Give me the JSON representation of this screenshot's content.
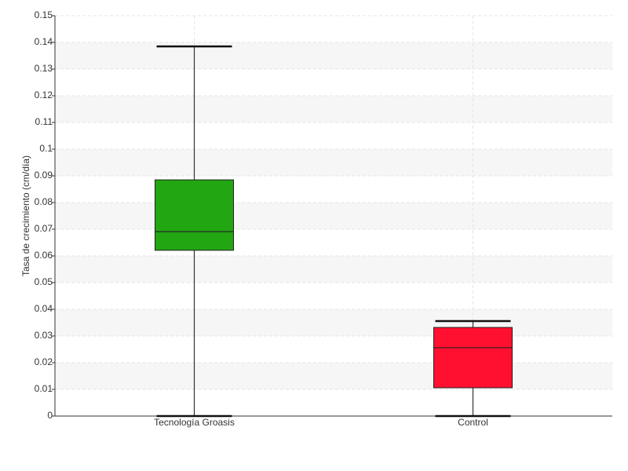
{
  "chart_data": {
    "type": "box",
    "y_label": "Tasa de crecimiento (cm/día)",
    "categories": [
      "Tecnología Groasis",
      "Control"
    ],
    "values": [
      {
        "min": 0,
        "q1": 0.0621,
        "median": 0.0691,
        "q3": 0.0885,
        "max": 0.1385
      },
      {
        "min": 0,
        "q1": 0.0106,
        "median": 0.0256,
        "q3": 0.0332,
        "max": 0.0356
      }
    ],
    "colors": [
      "#22a612",
      "#ff1030"
    ],
    "ylim": [
      0,
      0.15
    ],
    "yticks": [
      0,
      0.01,
      0.02,
      0.03,
      0.04,
      0.05,
      0.06,
      0.07,
      0.08,
      0.09,
      0.1,
      0.11,
      0.12,
      0.13,
      0.14,
      0.15
    ],
    "grid": true
  }
}
